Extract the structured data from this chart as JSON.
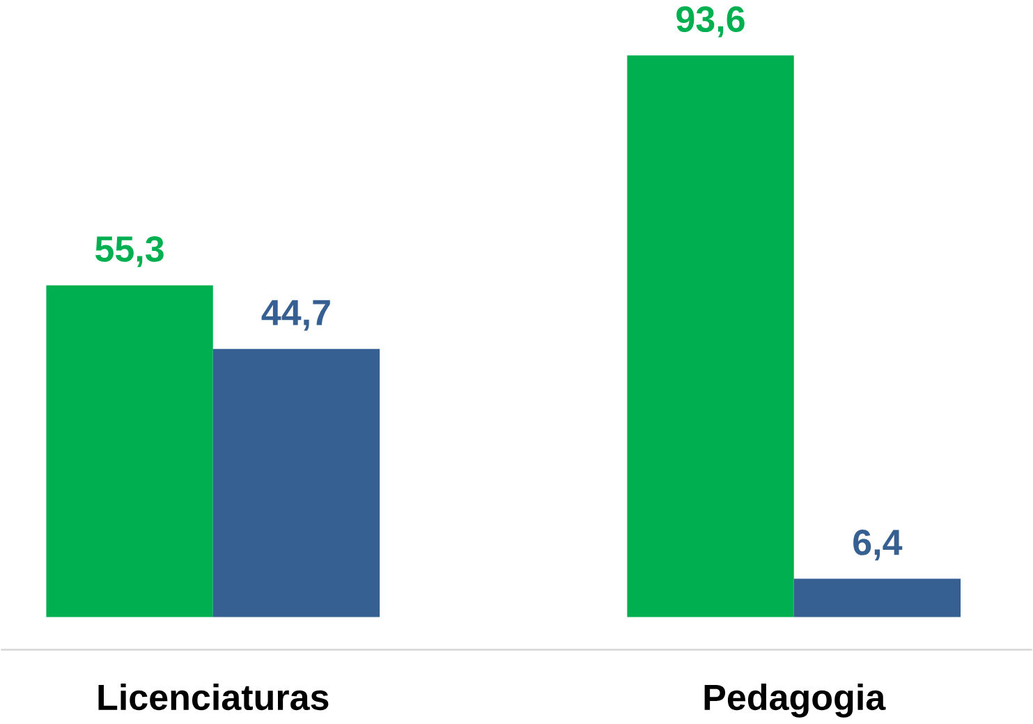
{
  "chart_data": {
    "type": "bar",
    "categories": [
      "Licenciaturas",
      "Pedagogia"
    ],
    "series": [
      {
        "color": "#00b050",
        "values": [
          55.3,
          93.6
        ],
        "value_labels": [
          "55,3",
          "93,6"
        ]
      },
      {
        "color": "#366092",
        "values": [
          44.7,
          6.4
        ],
        "value_labels": [
          "44,7",
          "6,4"
        ]
      }
    ]
  }
}
